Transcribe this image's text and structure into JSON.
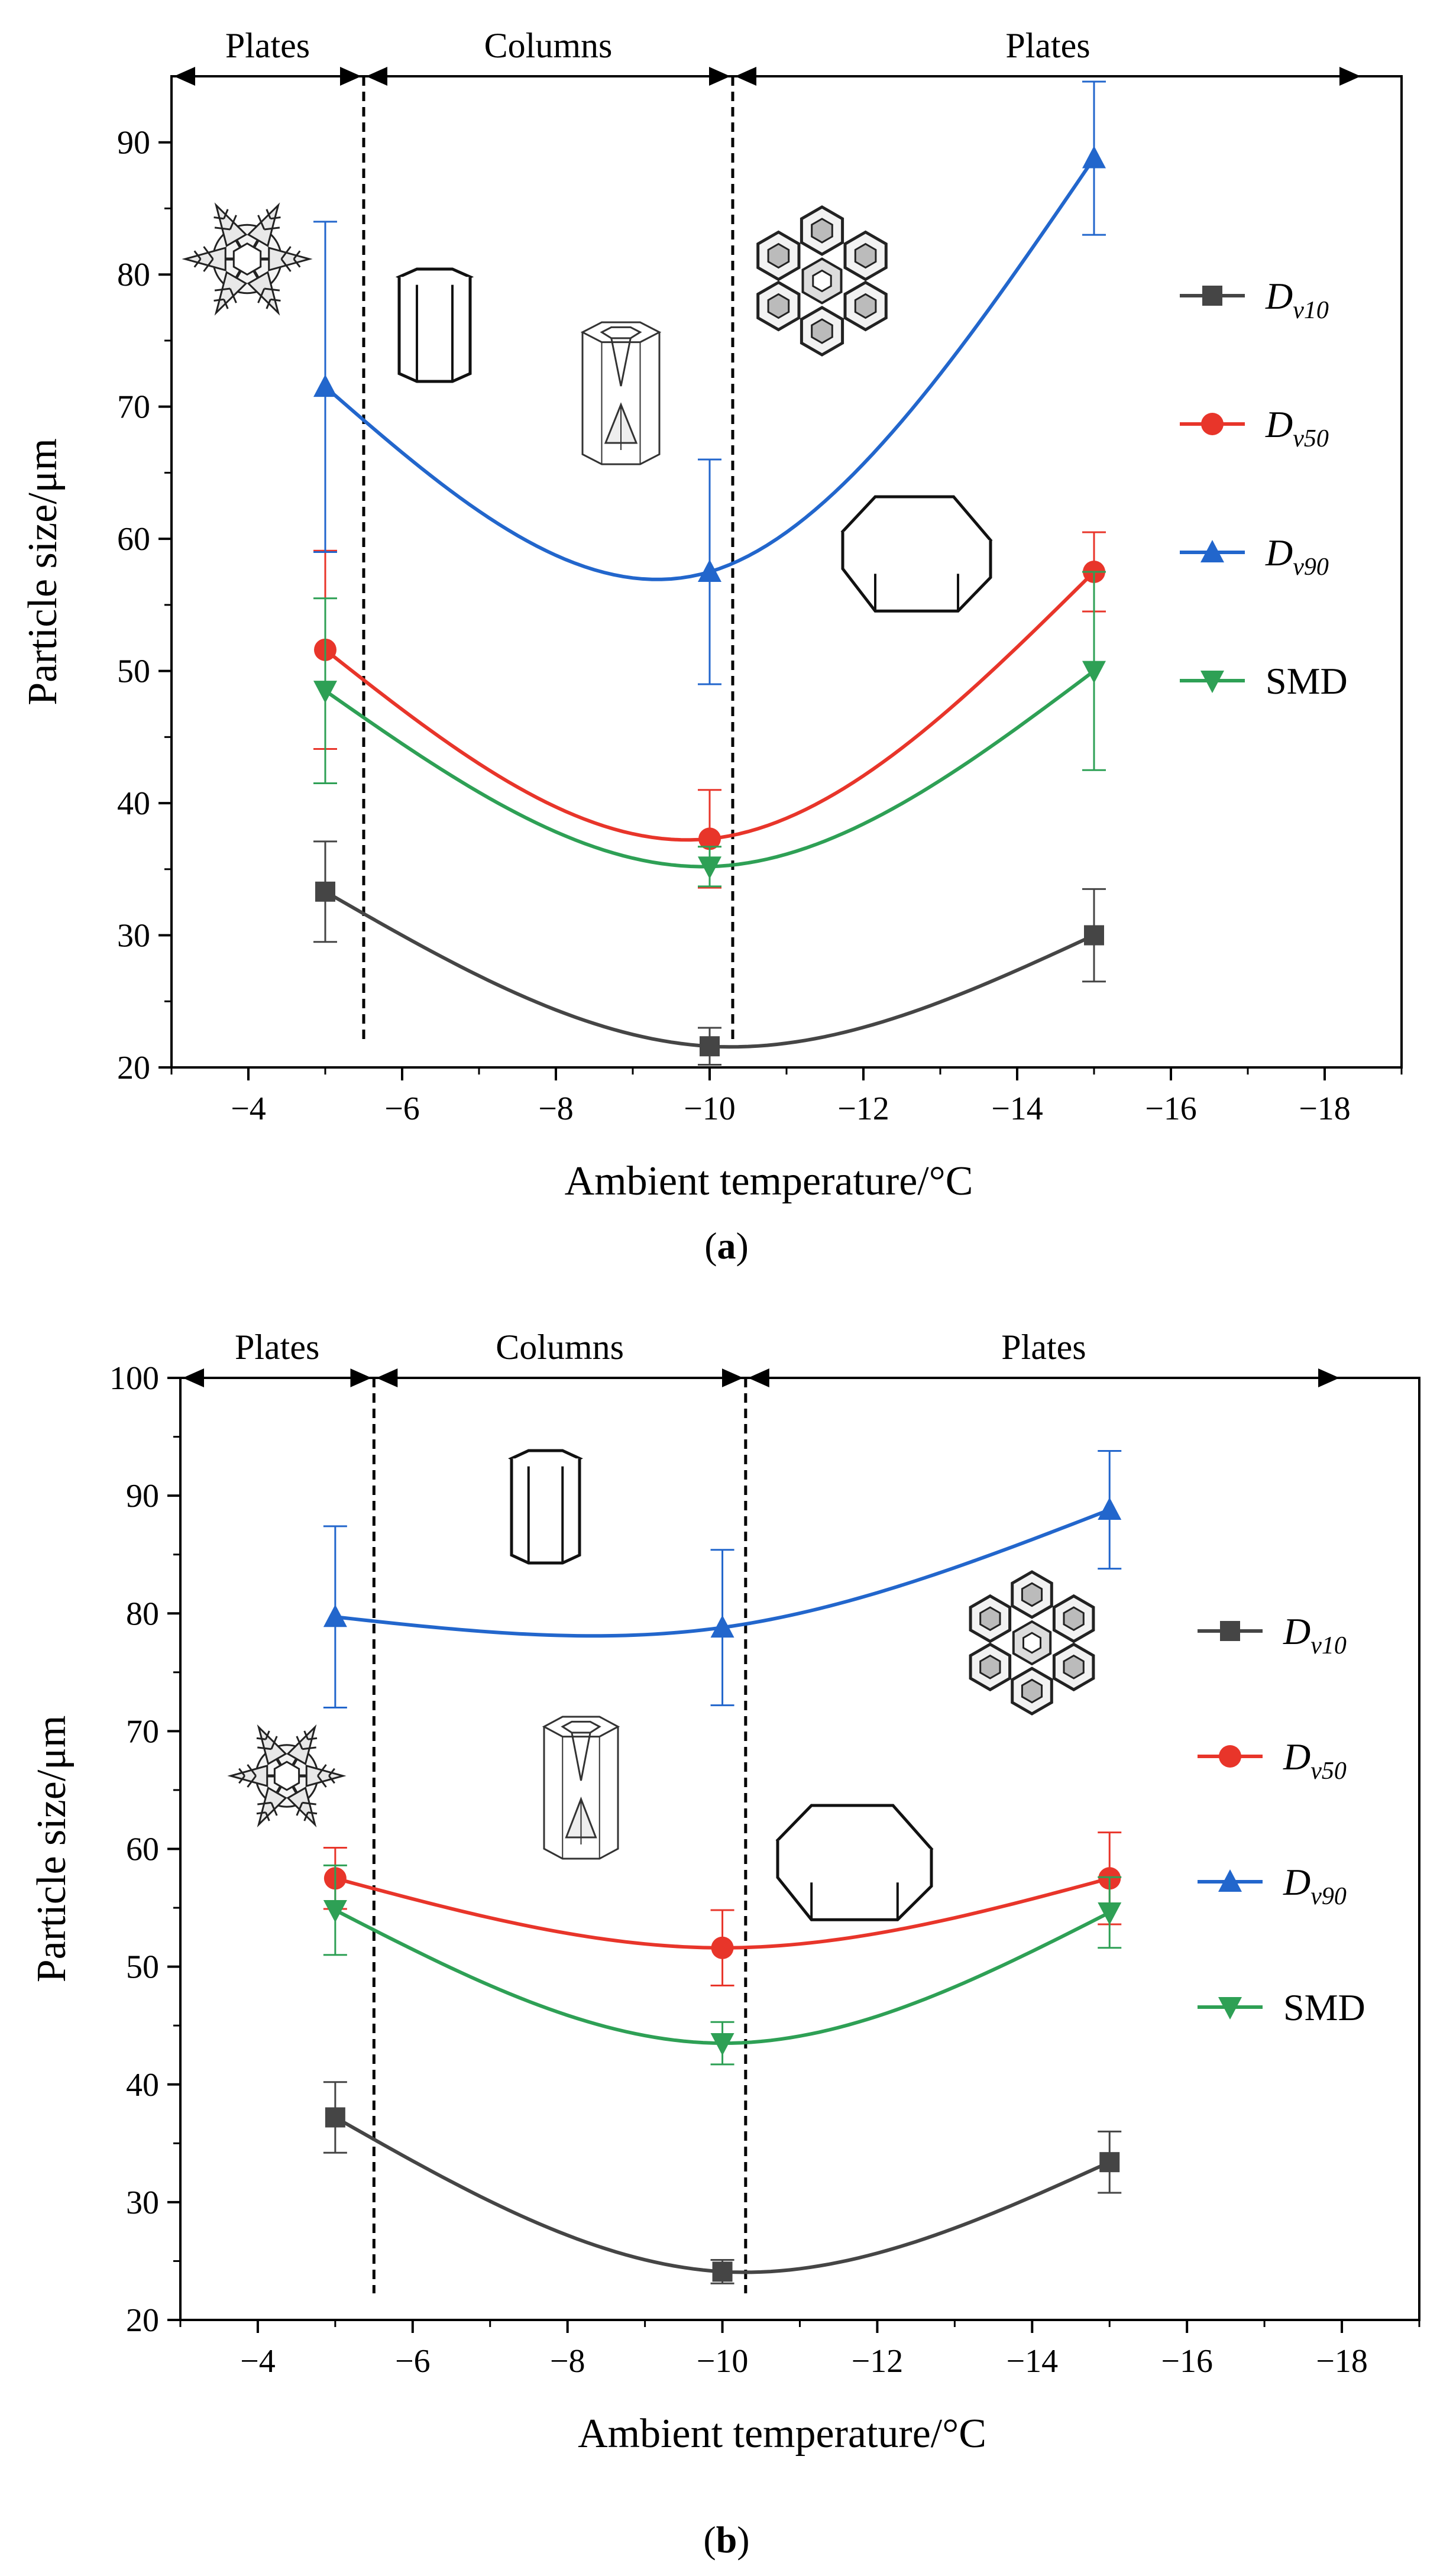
{
  "chart_data": [
    {
      "type": "line",
      "panel_label": "a",
      "xlabel": "Ambient temperature/°C",
      "ylabel": "Particle size/μm",
      "xlim": [
        -3,
        -19
      ],
      "ylim": [
        20,
        95
      ],
      "x_reversed": true,
      "xticks": [
        -4,
        -6,
        -8,
        -10,
        -12,
        -14,
        -16,
        -18
      ],
      "yticks": [
        20,
        30,
        40,
        50,
        60,
        70,
        80,
        90
      ],
      "x": [
        -5,
        -10,
        -15
      ],
      "legend_position": "right",
      "grid": false,
      "series": [
        {
          "name": "Dv10",
          "main": "D",
          "sub": "v10",
          "color": "#454545",
          "marker": "square",
          "values": [
            33.3,
            21.6,
            30.0
          ],
          "errors": [
            3.8,
            1.4,
            3.5
          ],
          "fit": [
            [
              -5,
              33.3
            ],
            [
              -10,
              21.6
            ],
            [
              -15,
              30.0
            ]
          ]
        },
        {
          "name": "Dv50",
          "main": "D",
          "sub": "v50",
          "color": "#e8352a",
          "marker": "circle",
          "values": [
            51.6,
            37.3,
            57.5
          ],
          "errors": [
            7.5,
            3.7,
            3.0
          ],
          "fit": [
            [
              -5,
              51.6
            ],
            [
              -10,
              37.3
            ],
            [
              -15,
              57.5
            ]
          ]
        },
        {
          "name": "Dv90",
          "main": "D",
          "sub": "v90",
          "color": "#2266cc",
          "marker": "triangle-up",
          "values": [
            71.5,
            57.5,
            88.8
          ],
          "errors": [
            12.5,
            8.5,
            5.8
          ],
          "fit": [
            [
              -5,
              71.5
            ],
            [
              -10,
              57.5
            ],
            [
              -15,
              88.8
            ]
          ]
        },
        {
          "name": "SMD",
          "main": "SMD",
          "sub": "",
          "color": "#2ea055",
          "marker": "triangle-down",
          "values": [
            48.5,
            35.2,
            50.0
          ],
          "errors": [
            7.0,
            1.5,
            7.5
          ],
          "fit": [
            [
              -5,
              48.5
            ],
            [
              -10,
              35.2
            ],
            [
              -15,
              50.0
            ]
          ]
        }
      ],
      "regions": [
        {
          "label": "Plates",
          "from": -3,
          "to": -5.5
        },
        {
          "label": "Columns",
          "from": -5.5,
          "to": -10.3
        },
        {
          "label": "Plates",
          "from": -10.3,
          "to": -18.5
        }
      ],
      "boundaries": [
        -5.5,
        -10.3
      ]
    },
    {
      "type": "line",
      "panel_label": "b",
      "xlabel": "Ambient temperature/°C",
      "ylabel": "Particle size/μm",
      "xlim": [
        -3,
        -19
      ],
      "ylim": [
        20,
        100
      ],
      "x_reversed": true,
      "xticks": [
        -4,
        -6,
        -8,
        -10,
        -12,
        -14,
        -16,
        -18
      ],
      "yticks": [
        20,
        30,
        40,
        50,
        60,
        70,
        80,
        90,
        100
      ],
      "x": [
        -5,
        -10,
        -15
      ],
      "legend_position": "right",
      "grid": false,
      "series": [
        {
          "name": "Dv10",
          "main": "D",
          "sub": "v10",
          "color": "#454545",
          "marker": "square",
          "values": [
            37.2,
            24.1,
            33.4
          ],
          "errors": [
            3.0,
            1.0,
            2.6
          ],
          "fit": [
            [
              -5,
              37.2
            ],
            [
              -10,
              24.1
            ],
            [
              -15,
              33.4
            ]
          ]
        },
        {
          "name": "Dv50",
          "main": "D",
          "sub": "v50",
          "color": "#e8352a",
          "marker": "circle",
          "values": [
            57.5,
            51.6,
            57.5
          ],
          "errors": [
            2.6,
            3.2,
            3.9
          ],
          "fit": [
            [
              -5,
              57.5
            ],
            [
              -10,
              51.6
            ],
            [
              -15,
              57.5
            ]
          ]
        },
        {
          "name": "Dv90",
          "main": "D",
          "sub": "v90",
          "color": "#2266cc",
          "marker": "triangle-up",
          "values": [
            79.7,
            78.8,
            88.8
          ],
          "errors": [
            7.7,
            6.6,
            5.0
          ],
          "fit": [
            [
              -5,
              79.7
            ],
            [
              -10,
              78.8
            ],
            [
              -15,
              88.8
            ]
          ]
        },
        {
          "name": "SMD",
          "main": "SMD",
          "sub": "",
          "color": "#2ea055",
          "marker": "triangle-down",
          "values": [
            54.8,
            43.5,
            54.6
          ],
          "errors": [
            3.8,
            1.8,
            3.0
          ],
          "fit": [
            [
              -5,
              54.8
            ],
            [
              -10,
              43.5
            ],
            [
              -15,
              54.6
            ]
          ]
        }
      ],
      "regions": [
        {
          "label": "Plates",
          "from": -3,
          "to": -5.5
        },
        {
          "label": "Columns",
          "from": -5.5,
          "to": -10.3
        },
        {
          "label": "Plates",
          "from": -10.3,
          "to": -18
        }
      ],
      "boundaries": [
        -5.5,
        -10.3
      ]
    }
  ],
  "captions": {
    "a_open": "(",
    "a_label": "a",
    "a_close": ")",
    "b_open": "(",
    "b_label": "b",
    "b_close": ")"
  },
  "illustrations": [
    "snowflake-plate-icon",
    "hexagonal-column-icon",
    "hollow-column-icon",
    "sectored-plate-icon",
    "hexagonal-plate-icon"
  ]
}
